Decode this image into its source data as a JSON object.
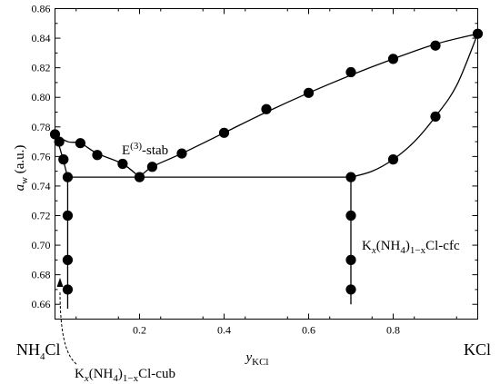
{
  "chart_data": {
    "type": "scatter",
    "xlabel": {
      "main": "y",
      "sub": "KCl"
    },
    "ylabel": {
      "main": "a",
      "sub": "w",
      "unit": " (a.u.)"
    },
    "xlim": [
      0,
      1
    ],
    "ylim": [
      0.65,
      0.86
    ],
    "xticks": [
      {
        "value": 0.2,
        "label": "0.2"
      },
      {
        "value": 0.4,
        "label": "0.4"
      },
      {
        "value": 0.6,
        "label": "0.6"
      },
      {
        "value": 0.8,
        "label": "0.8"
      }
    ],
    "yticks": [
      {
        "value": 0.66,
        "label": "0.66"
      },
      {
        "value": 0.68,
        "label": "0.68"
      },
      {
        "value": 0.7,
        "label": "0.70"
      },
      {
        "value": 0.72,
        "label": "0.72"
      },
      {
        "value": 0.74,
        "label": "0.74"
      },
      {
        "value": 0.76,
        "label": "0.76"
      },
      {
        "value": 0.78,
        "label": "0.78"
      },
      {
        "value": 0.8,
        "label": "0.80"
      },
      {
        "value": 0.82,
        "label": "0.82"
      },
      {
        "value": 0.84,
        "label": "0.84"
      },
      {
        "value": 0.86,
        "label": "0.86"
      }
    ],
    "points": [
      {
        "x": 0.0,
        "y": 0.775
      },
      {
        "x": 0.01,
        "y": 0.77
      },
      {
        "x": 0.02,
        "y": 0.758
      },
      {
        "x": 0.03,
        "y": 0.746
      },
      {
        "x": 0.03,
        "y": 0.72
      },
      {
        "x": 0.03,
        "y": 0.69
      },
      {
        "x": 0.03,
        "y": 0.67
      },
      {
        "x": 0.06,
        "y": 0.769
      },
      {
        "x": 0.1,
        "y": 0.761
      },
      {
        "x": 0.16,
        "y": 0.755
      },
      {
        "x": 0.2,
        "y": 0.746
      },
      {
        "x": 0.23,
        "y": 0.753
      },
      {
        "x": 0.3,
        "y": 0.762
      },
      {
        "x": 0.4,
        "y": 0.776
      },
      {
        "x": 0.5,
        "y": 0.792
      },
      {
        "x": 0.6,
        "y": 0.803
      },
      {
        "x": 0.7,
        "y": 0.817
      },
      {
        "x": 0.8,
        "y": 0.826
      },
      {
        "x": 0.9,
        "y": 0.835
      },
      {
        "x": 1.0,
        "y": 0.843
      },
      {
        "x": 0.7,
        "y": 0.746
      },
      {
        "x": 0.7,
        "y": 0.72
      },
      {
        "x": 0.7,
        "y": 0.69
      },
      {
        "x": 0.7,
        "y": 0.67
      },
      {
        "x": 0.8,
        "y": 0.758
      },
      {
        "x": 0.9,
        "y": 0.787
      }
    ],
    "curves": [
      {
        "points": [
          [
            0.0,
            0.775
          ],
          [
            0.03,
            0.77
          ],
          [
            0.06,
            0.769
          ],
          [
            0.1,
            0.762
          ],
          [
            0.16,
            0.755
          ],
          [
            0.2,
            0.746
          ]
        ]
      },
      {
        "points": [
          [
            0.2,
            0.746
          ],
          [
            0.23,
            0.753
          ],
          [
            0.3,
            0.762
          ],
          [
            0.4,
            0.776
          ],
          [
            0.5,
            0.79
          ],
          [
            0.6,
            0.803
          ],
          [
            0.7,
            0.815
          ],
          [
            0.8,
            0.826
          ],
          [
            0.9,
            0.836
          ],
          [
            1.0,
            0.843
          ]
        ]
      },
      {
        "points": [
          [
            0.0,
            0.775
          ],
          [
            0.01,
            0.767
          ],
          [
            0.02,
            0.757
          ],
          [
            0.03,
            0.746
          ]
        ]
      },
      {
        "points": [
          [
            0.03,
            0.746
          ],
          [
            0.7,
            0.746
          ]
        ]
      },
      {
        "points": [
          [
            0.03,
            0.746
          ],
          [
            0.03,
            0.657
          ]
        ]
      },
      {
        "points": [
          [
            0.7,
            0.746
          ],
          [
            0.7,
            0.66
          ]
        ]
      },
      {
        "points": [
          [
            0.7,
            0.746
          ],
          [
            0.75,
            0.75
          ],
          [
            0.8,
            0.758
          ],
          [
            0.85,
            0.77
          ],
          [
            0.9,
            0.787
          ],
          [
            0.95,
            0.808
          ],
          [
            1.0,
            0.843
          ]
        ]
      }
    ],
    "annotations": {
      "eutectic": {
        "main": "E",
        "sup": "(3)",
        "rest": "-stab"
      },
      "cfc": {
        "p1": "K",
        "p2": "x",
        "p3": "(NH",
        "p4": "4",
        "p5": ")",
        "p6": "1−x",
        "p7": "Cl-cfc"
      },
      "cub": {
        "p1": "K",
        "p2": "x",
        "p3": "(NH",
        "p4": "4",
        "p5": ")",
        "p6": "1−x",
        "p7": "Cl-cub"
      }
    },
    "endmembers": {
      "left": {
        "main": "NH",
        "sub": "4",
        "rest": "Cl"
      },
      "right": "KCl"
    }
  }
}
